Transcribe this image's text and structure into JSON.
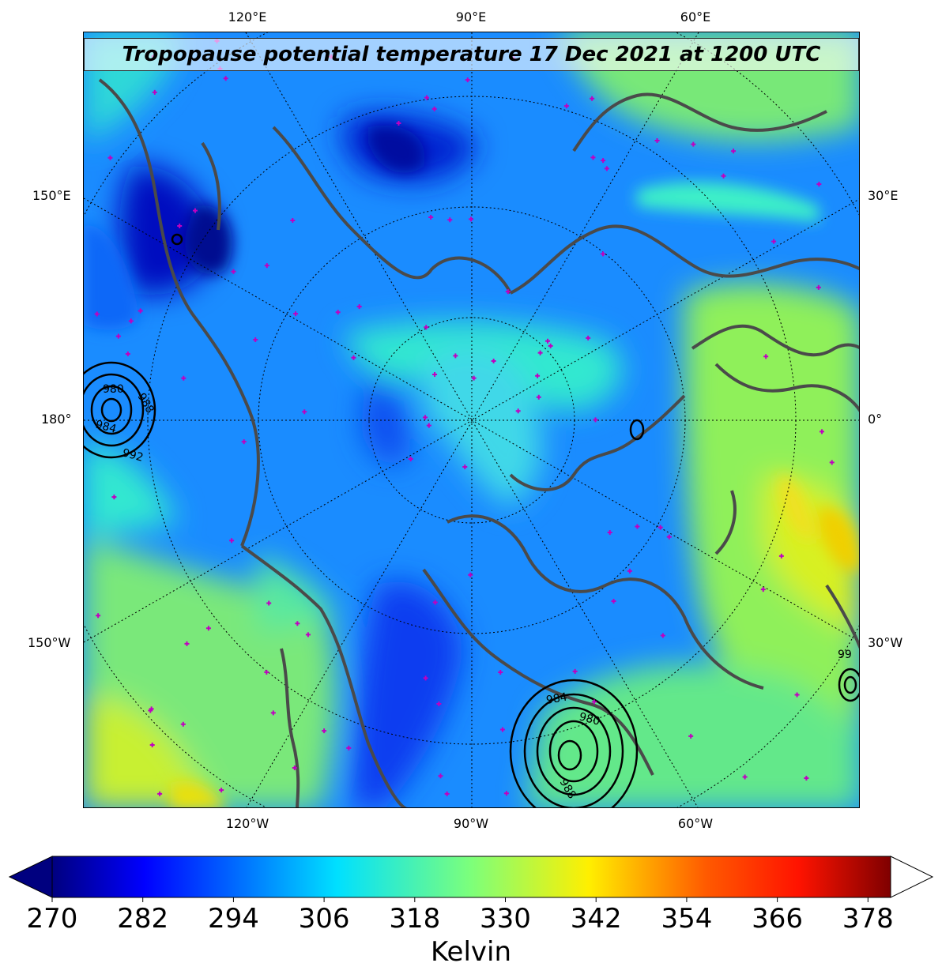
{
  "title": "Tropopause potential temperature 17 Dec 2021 at 1200 UTC",
  "top_lon_labels": [
    "120°E",
    "90°E",
    "60°E"
  ],
  "bottom_lon_labels": [
    "120°W",
    "90°W",
    "60°W"
  ],
  "left_labels": [
    "150°E",
    "180°",
    "150°W"
  ],
  "right_labels": [
    "30°E",
    "0°",
    "30°W"
  ],
  "colorbar": {
    "ticks": [
      "270",
      "282",
      "294",
      "306",
      "318",
      "330",
      "342",
      "354",
      "366",
      "378"
    ],
    "label": "Kelvin",
    "min": 270,
    "max": 381,
    "extend": "both",
    "colormap": "jet"
  },
  "pressure_contour_labels": [
    "980",
    "988",
    "984",
    "992",
    "980",
    "984",
    "988",
    "992",
    "99"
  ],
  "colors": {
    "coastline": "#4a4a4a",
    "marker": "#c000c0",
    "contour": "#000000"
  }
}
